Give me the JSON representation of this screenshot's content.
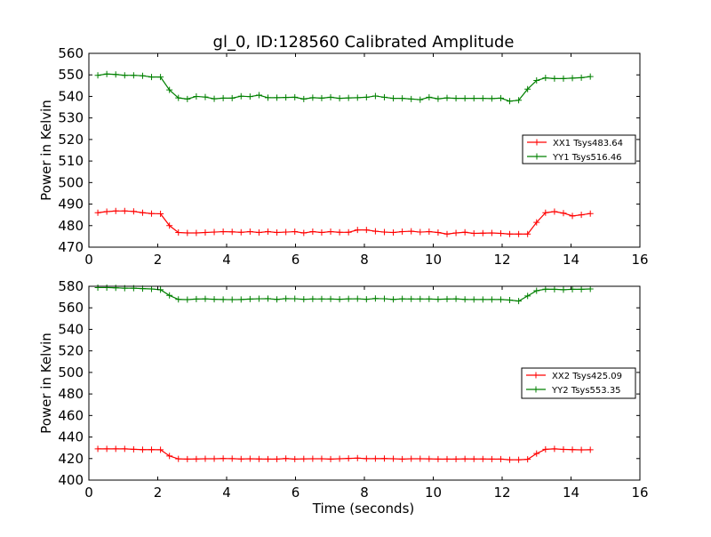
{
  "figure": {
    "title": "gl_0, ID:128560 Calibrated Amplitude",
    "xlabel": "Time (seconds)"
  },
  "chart_data": [
    {
      "type": "line",
      "title": "gl_0, ID:128560 Calibrated Amplitude",
      "xlabel": "",
      "ylabel": "Power in Kelvin",
      "xlim": [
        0,
        16
      ],
      "ylim": [
        470,
        560
      ],
      "xticks": [
        0,
        2,
        4,
        6,
        8,
        10,
        12,
        14,
        16
      ],
      "yticks": [
        470,
        480,
        490,
        500,
        510,
        520,
        530,
        540,
        550,
        560
      ],
      "legend_position": "right",
      "marker": "+",
      "x": [
        0.26,
        0.52,
        0.78,
        1.04,
        1.3,
        1.56,
        1.82,
        2.08,
        2.34,
        2.6,
        2.86,
        3.12,
        3.38,
        3.64,
        3.9,
        4.16,
        4.42,
        4.68,
        4.94,
        5.2,
        5.46,
        5.72,
        5.98,
        6.24,
        6.5,
        6.76,
        7.02,
        7.28,
        7.54,
        7.8,
        8.06,
        8.32,
        8.58,
        8.84,
        9.1,
        9.36,
        9.62,
        9.88,
        10.14,
        10.4,
        10.66,
        10.92,
        11.18,
        11.44,
        11.7,
        11.96,
        12.22,
        12.48,
        12.74,
        13.0,
        13.26,
        13.52,
        13.78,
        14.04,
        14.3,
        14.56
      ],
      "series": [
        {
          "name": "XX1 Tsys483.64",
          "color": "#ff0000",
          "values": [
            486,
            486.5,
            486.8,
            486.8,
            486.6,
            486,
            485.6,
            485.5,
            480,
            476.8,
            476.6,
            476.6,
            476.8,
            477,
            477.2,
            477.1,
            476.9,
            477.2,
            476.8,
            477.2,
            476.8,
            477,
            477.2,
            476.6,
            477.2,
            476.8,
            477.2,
            476.9,
            476.9,
            478,
            478,
            477.4,
            477,
            476.8,
            477.2,
            477.4,
            477,
            477.2,
            476.8,
            476.1,
            476.6,
            476.9,
            476.4,
            476.5,
            476.6,
            476.4,
            476.1,
            476.1,
            476.1,
            481.5,
            486,
            486.5,
            485.8,
            484.5,
            485,
            485.6
          ]
        },
        {
          "name": "YY1 Tsys516.46",
          "color": "#008000",
          "values": [
            549.8,
            550.4,
            550.2,
            549.8,
            549.8,
            549.6,
            549,
            549,
            543,
            539.3,
            538.8,
            540,
            539.7,
            538.9,
            539.2,
            539.2,
            540.1,
            539.9,
            540.6,
            539.4,
            539.4,
            539.5,
            539.6,
            538.8,
            539.4,
            539.2,
            539.6,
            539.1,
            539.3,
            539.4,
            539.6,
            540.2,
            539.6,
            539.1,
            539.1,
            538.8,
            538.5,
            539.6,
            538.9,
            539.3,
            539.1,
            539.1,
            539.1,
            539.1,
            539,
            539.2,
            537.8,
            538.2,
            543.4,
            547.4,
            548.6,
            548.3,
            548.3,
            548.5,
            548.7,
            549.2
          ]
        }
      ]
    },
    {
      "type": "line",
      "title": "",
      "xlabel": "Time (seconds)",
      "ylabel": "Power in Kelvin",
      "xlim": [
        0,
        16
      ],
      "ylim": [
        400,
        580
      ],
      "xticks": [
        0,
        2,
        4,
        6,
        8,
        10,
        12,
        14,
        16
      ],
      "yticks": [
        400,
        420,
        440,
        460,
        480,
        500,
        520,
        540,
        560,
        580
      ],
      "legend_position": "right",
      "marker": "+",
      "x": [
        0.26,
        0.52,
        0.78,
        1.04,
        1.3,
        1.56,
        1.82,
        2.08,
        2.34,
        2.6,
        2.86,
        3.12,
        3.38,
        3.64,
        3.9,
        4.16,
        4.42,
        4.68,
        4.94,
        5.2,
        5.46,
        5.72,
        5.98,
        6.24,
        6.5,
        6.76,
        7.02,
        7.28,
        7.54,
        7.8,
        8.06,
        8.32,
        8.58,
        8.84,
        9.1,
        9.36,
        9.62,
        9.88,
        10.14,
        10.4,
        10.66,
        10.92,
        11.18,
        11.44,
        11.7,
        11.96,
        12.22,
        12.48,
        12.74,
        13.0,
        13.26,
        13.52,
        13.78,
        14.04,
        14.3,
        14.56
      ],
      "series": [
        {
          "name": "XX2 Tsys425.09",
          "color": "#ff0000",
          "values": [
            429,
            429,
            429,
            429,
            428.6,
            428.3,
            428.3,
            428.2,
            422.4,
            419.7,
            419.5,
            419.6,
            419.8,
            419.8,
            420,
            419.9,
            419.6,
            419.8,
            419.6,
            419.5,
            419.5,
            420,
            419.5,
            419.7,
            419.8,
            419.8,
            419.5,
            419.8,
            420.1,
            420.4,
            419.9,
            419.9,
            420,
            419.8,
            419.5,
            419.8,
            419.8,
            419.7,
            419.5,
            419.5,
            419.5,
            419.7,
            419.6,
            419.6,
            419.5,
            419.5,
            418.9,
            418.9,
            419.3,
            424.7,
            428.6,
            429,
            428.5,
            428.3,
            428.1,
            428.2
          ]
        },
        {
          "name": "YY2 Tsys553.35",
          "color": "#008000",
          "values": [
            578.8,
            578.8,
            578.6,
            578.2,
            578.2,
            577.8,
            577.5,
            576.8,
            571.5,
            567.8,
            567.6,
            568.1,
            568.3,
            567.9,
            567.7,
            567.6,
            567.7,
            568.1,
            568.4,
            568.5,
            567.8,
            568.5,
            568.4,
            567.9,
            568.2,
            568.2,
            568.2,
            567.9,
            568.3,
            568.4,
            567.9,
            568.6,
            568.4,
            567.8,
            568.3,
            568.2,
            568.2,
            568.2,
            567.9,
            568.1,
            568.3,
            567.8,
            567.7,
            567.7,
            567.7,
            567.7,
            567.2,
            566.3,
            571,
            575.9,
            577.3,
            577.2,
            576.8,
            577.2,
            577.2,
            577.5
          ]
        }
      ]
    }
  ]
}
